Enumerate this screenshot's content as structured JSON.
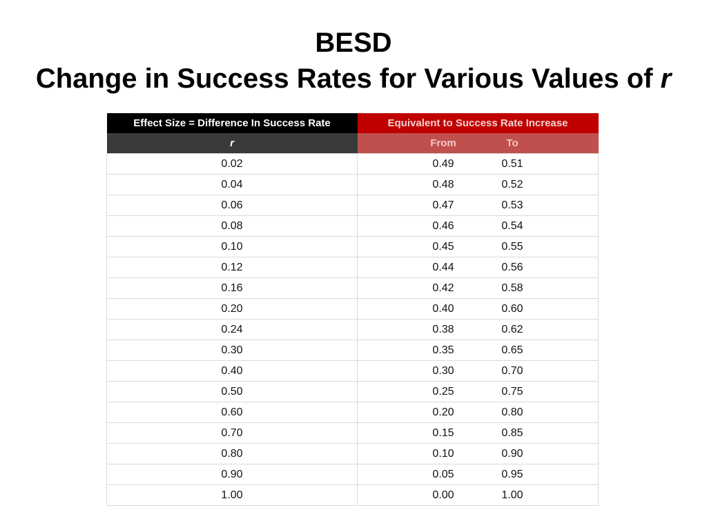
{
  "title": {
    "line1": "BESD",
    "line2_prefix": "Change in Success Rates for Various Values of ",
    "line2_italic": "r"
  },
  "table": {
    "header_left": "Effect Size = Difference In Success Rate",
    "header_right": "Equivalent to Success Rate Increase",
    "sub_left": "r",
    "sub_from": "From",
    "sub_to": "To",
    "rows": [
      {
        "r": "0.02",
        "from": "0.49",
        "to": "0.51"
      },
      {
        "r": "0.04",
        "from": "0.48",
        "to": "0.52"
      },
      {
        "r": "0.06",
        "from": "0.47",
        "to": "0.53"
      },
      {
        "r": "0.08",
        "from": "0.46",
        "to": "0.54"
      },
      {
        "r": "0.10",
        "from": "0.45",
        "to": "0.55"
      },
      {
        "r": "0.12",
        "from": "0.44",
        "to": "0.56"
      },
      {
        "r": "0.16",
        "from": "0.42",
        "to": "0.58"
      },
      {
        "r": "0.20",
        "from": "0.40",
        "to": "0.60"
      },
      {
        "r": "0.24",
        "from": "0.38",
        "to": "0.62"
      },
      {
        "r": "0.30",
        "from": "0.35",
        "to": "0.65"
      },
      {
        "r": "0.40",
        "from": "0.30",
        "to": "0.70"
      },
      {
        "r": "0.50",
        "from": "0.25",
        "to": "0.75"
      },
      {
        "r": "0.60",
        "from": "0.20",
        "to": "0.80"
      },
      {
        "r": "0.70",
        "from": "0.15",
        "to": "0.85"
      },
      {
        "r": "0.80",
        "from": "0.10",
        "to": "0.90"
      },
      {
        "r": "0.90",
        "from": "0.05",
        "to": "0.95"
      },
      {
        "r": "1.00",
        "from": "0.00",
        "to": "1.00"
      }
    ]
  },
  "colors": {
    "header_left": "#000000",
    "header_right": "#c00000",
    "subheader_left": "#3a3a3a",
    "subheader_right": "#c0504d"
  }
}
